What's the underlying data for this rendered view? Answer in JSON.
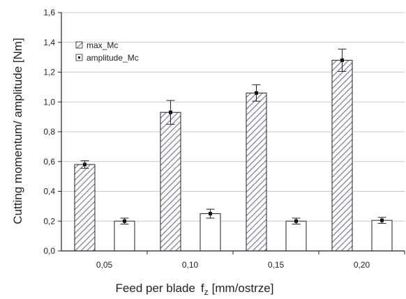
{
  "chart_data": {
    "type": "bar",
    "title": "",
    "xlabel_main": "Feed per blade",
    "xlabel_symbol": "f",
    "xlabel_sub": "z",
    "xlabel_unit": "[mm/ostrze]",
    "ylabel": "Cutting momentum/ amplitude [Nm]",
    "categories": [
      "0,05",
      "0,10",
      "0,15",
      "0,20"
    ],
    "ylim": [
      0,
      1.6
    ],
    "yticks": [
      0,
      0.2,
      0.4,
      0.6,
      0.8,
      1.0,
      1.2,
      1.4,
      1.6
    ],
    "ytick_labels": [
      "0,0",
      "0,2",
      "0,4",
      "0,6",
      "0,8",
      "1,0",
      "1,2",
      "1,4",
      "1,6"
    ],
    "grid": true,
    "legend_position": "top-left",
    "series": [
      {
        "name": "max_Mc",
        "pattern": "hatched",
        "color": "#7b7b96",
        "values": [
          0.58,
          0.93,
          1.06,
          1.28
        ],
        "error": [
          0.025,
          0.08,
          0.055,
          0.075
        ]
      },
      {
        "name": "amplitude_Mc",
        "pattern": "white",
        "color": "#ffffff",
        "values": [
          0.2,
          0.25,
          0.2,
          0.205
        ],
        "error": [
          0.02,
          0.03,
          0.02,
          0.02
        ]
      }
    ]
  }
}
